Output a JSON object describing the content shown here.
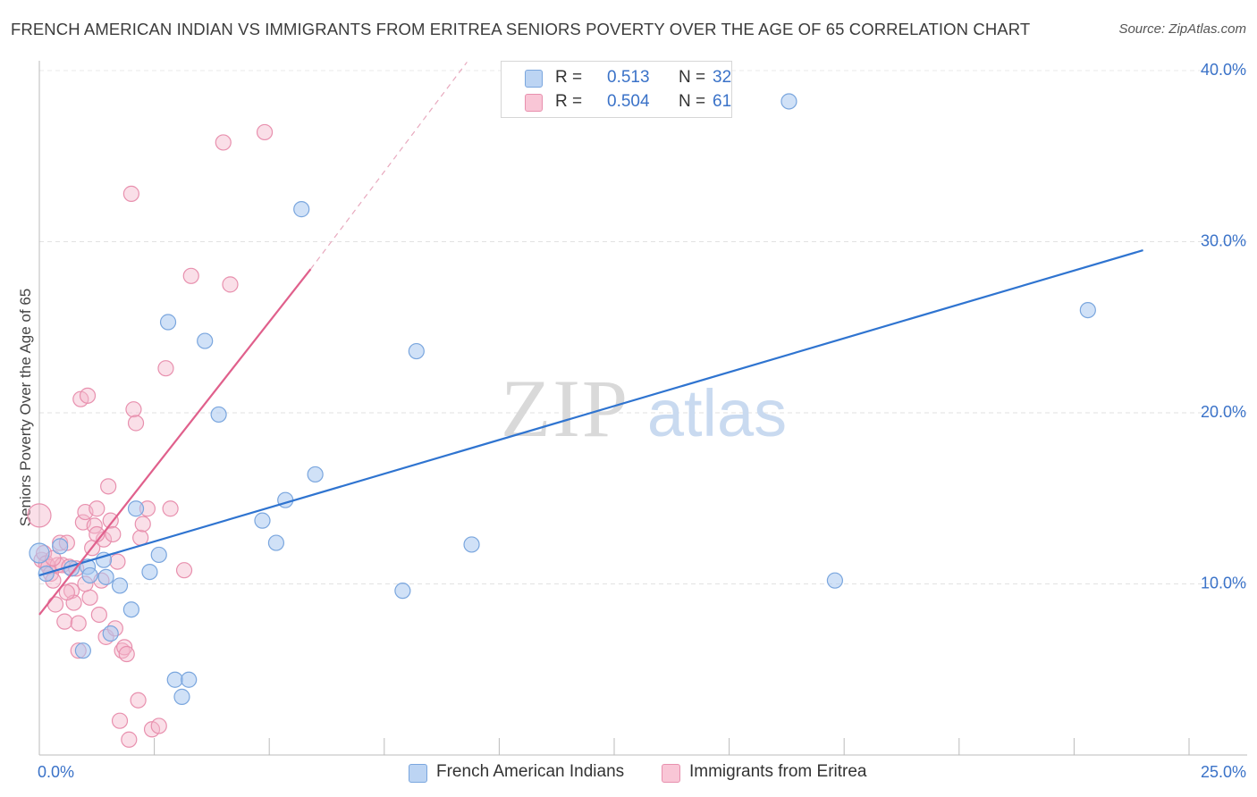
{
  "title": "FRENCH AMERICAN INDIAN VS IMMIGRANTS FROM ERITREA SENIORS POVERTY OVER THE AGE OF 65 CORRELATION CHART",
  "source": "Source: ZipAtlas.com",
  "watermark": {
    "zip": "ZIP",
    "atlas": "atlas"
  },
  "legend": {
    "rows": [
      {
        "r_label": "R =",
        "r_value": "0.513",
        "n_label": "N =",
        "n_value": "32"
      },
      {
        "r_label": "R =",
        "r_value": "0.504",
        "n_label": "N =",
        "n_value": "61"
      }
    ]
  },
  "chart_data": {
    "type": "scatter",
    "title": "FRENCH AMERICAN INDIAN VS IMMIGRANTS FROM ERITREA SENIORS POVERTY OVER THE AGE OF 65 CORRELATION CHART",
    "xlabel": "",
    "ylabel": "Seniors Poverty Over the Age of 65",
    "xlim": [
      0,
      25
    ],
    "ylim": [
      0,
      41
    ],
    "x_tick_labels": [
      "0.0%",
      "25.0%"
    ],
    "y_ticks": [
      10,
      20,
      30,
      40
    ],
    "y_tick_labels": [
      "10.0%",
      "20.0%",
      "30.0%",
      "40.0%"
    ],
    "grid": true,
    "legend_position": "bottom",
    "colors": {
      "blue_fill": "#aac8f0",
      "blue_stroke": "#7aa6de",
      "blue_line": "#2f74d0",
      "pink_fill": "#f5b8cc",
      "pink_stroke": "#e890ae",
      "pink_line": "#e0608c"
    },
    "series": [
      {
        "name": "French American Indians",
        "color": "#2f74d0",
        "r": 0.513,
        "n": 32,
        "trend": {
          "x0": 0.0,
          "y0": 10.5,
          "x1": 24.0,
          "y1": 29.5
        },
        "points": [
          [
            0.0,
            11.8
          ],
          [
            0.15,
            10.6
          ],
          [
            0.45,
            12.2
          ],
          [
            0.7,
            10.9
          ],
          [
            1.05,
            11.0
          ],
          [
            1.1,
            10.5
          ],
          [
            1.4,
            11.4
          ],
          [
            1.45,
            10.4
          ],
          [
            1.55,
            7.1
          ],
          [
            1.75,
            9.9
          ],
          [
            2.0,
            8.5
          ],
          [
            2.1,
            14.4
          ],
          [
            2.4,
            10.7
          ],
          [
            2.6,
            11.7
          ],
          [
            2.8,
            25.3
          ],
          [
            2.95,
            4.4
          ],
          [
            3.1,
            3.4
          ],
          [
            3.25,
            4.4
          ],
          [
            3.6,
            24.2
          ],
          [
            3.9,
            19.9
          ],
          [
            4.85,
            13.7
          ],
          [
            5.15,
            12.4
          ],
          [
            5.35,
            14.9
          ],
          [
            5.7,
            31.9
          ],
          [
            6.0,
            16.4
          ],
          [
            7.9,
            9.6
          ],
          [
            8.2,
            23.6
          ],
          [
            9.4,
            12.3
          ],
          [
            0.95,
            6.1
          ],
          [
            16.3,
            38.2
          ],
          [
            17.3,
            10.2
          ],
          [
            22.8,
            26.0
          ]
        ]
      },
      {
        "name": "Immigrants from Eritrea",
        "color": "#e0608c",
        "r": 0.504,
        "n": 61,
        "trend": {
          "x0": 0.0,
          "y0": 8.2,
          "x1": 5.9,
          "y1": 28.4
        },
        "trend_dashed": {
          "x0": 5.9,
          "y0": 28.4,
          "x1": 9.3,
          "y1": 40.5
        },
        "points": [
          [
            0.0,
            14.0
          ],
          [
            0.05,
            11.4
          ],
          [
            0.1,
            11.8
          ],
          [
            0.15,
            11.2
          ],
          [
            0.2,
            11.0
          ],
          [
            0.25,
            10.6
          ],
          [
            0.3,
            10.2
          ],
          [
            0.35,
            8.8
          ],
          [
            0.4,
            11.1
          ],
          [
            0.45,
            12.4
          ],
          [
            0.5,
            11.1
          ],
          [
            0.55,
            7.8
          ],
          [
            0.6,
            12.4
          ],
          [
            0.65,
            11.0
          ],
          [
            0.7,
            9.6
          ],
          [
            0.75,
            8.9
          ],
          [
            0.8,
            10.9
          ],
          [
            0.85,
            7.7
          ],
          [
            0.9,
            20.8
          ],
          [
            0.95,
            13.6
          ],
          [
            1.0,
            14.2
          ],
          [
            1.05,
            21.0
          ],
          [
            1.1,
            9.2
          ],
          [
            1.15,
            12.1
          ],
          [
            1.2,
            13.4
          ],
          [
            1.25,
            14.4
          ],
          [
            1.3,
            8.2
          ],
          [
            1.35,
            10.2
          ],
          [
            1.4,
            12.6
          ],
          [
            1.45,
            6.9
          ],
          [
            1.5,
            15.7
          ],
          [
            1.55,
            13.7
          ],
          [
            1.6,
            12.9
          ],
          [
            1.65,
            7.4
          ],
          [
            1.7,
            11.3
          ],
          [
            1.75,
            2.0
          ],
          [
            1.8,
            6.1
          ],
          [
            1.85,
            6.3
          ],
          [
            1.9,
            5.9
          ],
          [
            1.95,
            0.9
          ],
          [
            2.0,
            32.8
          ],
          [
            2.05,
            20.2
          ],
          [
            2.1,
            19.4
          ],
          [
            2.15,
            3.2
          ],
          [
            2.2,
            12.7
          ],
          [
            2.25,
            13.5
          ],
          [
            2.35,
            14.4
          ],
          [
            2.45,
            1.5
          ],
          [
            2.6,
            1.7
          ],
          [
            2.75,
            22.6
          ],
          [
            2.85,
            14.4
          ],
          [
            3.15,
            10.8
          ],
          [
            3.3,
            28.0
          ],
          [
            4.0,
            35.8
          ],
          [
            4.15,
            27.5
          ],
          [
            4.9,
            36.4
          ],
          [
            0.85,
            6.1
          ],
          [
            0.6,
            9.5
          ],
          [
            1.0,
            10.0
          ],
          [
            0.3,
            11.5
          ],
          [
            1.25,
            12.9
          ]
        ]
      }
    ]
  }
}
